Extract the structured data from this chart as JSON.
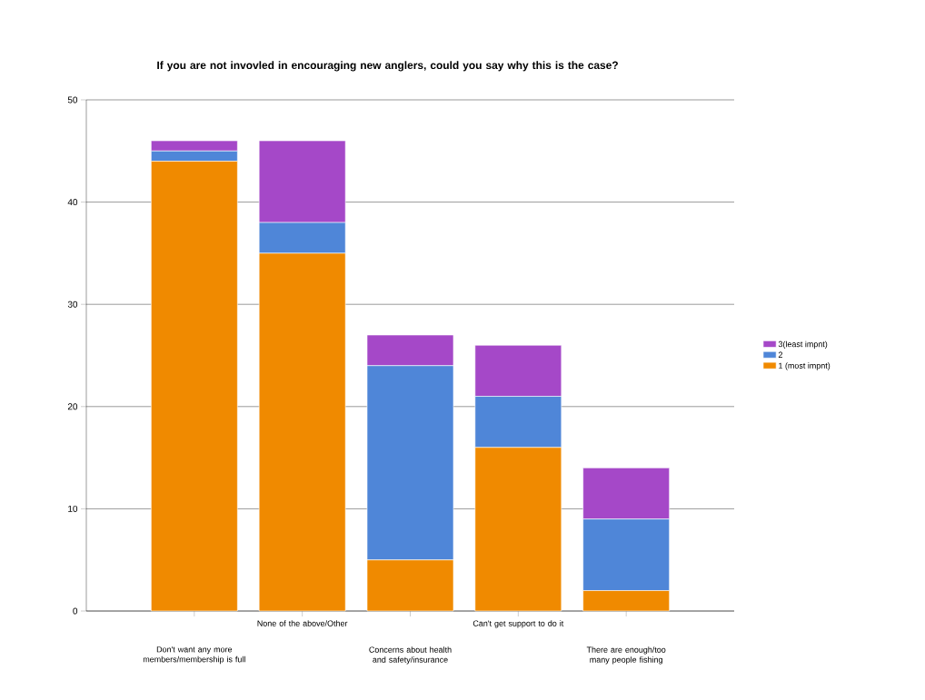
{
  "chart_data": {
    "type": "bar",
    "title": "If you are not invovled in encouraging new anglers, could you say why this is the case?",
    "categories": [
      "Don't want any more members/membership is full",
      "None of the above/Other",
      "Concerns about health and safety/insurance",
      "Can't get support to do it",
      "There are enough/too many people fishing"
    ],
    "series": [
      {
        "name": "1 (most impnt)",
        "color": "#f08a00",
        "values": [
          44,
          35,
          5,
          16,
          2
        ]
      },
      {
        "name": "2",
        "color": "#4f86d8",
        "values": [
          1,
          3,
          19,
          5,
          7
        ]
      },
      {
        "name": "3(least impnt)",
        "color": "#a548c8",
        "values": [
          1,
          8,
          3,
          5,
          5
        ]
      }
    ],
    "stacked": true,
    "legend": "right",
    "grid": "y",
    "ylim": [
      0,
      50
    ],
    "yticks": [
      0,
      10,
      20,
      30,
      40,
      50
    ]
  }
}
